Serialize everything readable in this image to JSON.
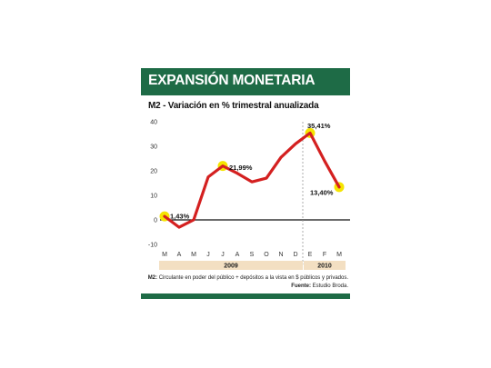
{
  "header": {
    "title": "EXPANSIÓN MONETARIA"
  },
  "chart_data": {
    "type": "line",
    "title": "M2 - Variación en % trimestral anualizada",
    "categories": [
      "M",
      "A",
      "M",
      "J",
      "J",
      "A",
      "S",
      "O",
      "N",
      "D",
      "E",
      "F",
      "M"
    ],
    "values": [
      1.43,
      -3,
      0,
      17.5,
      21.99,
      19,
      15.5,
      17,
      25.5,
      31,
      35.41,
      24,
      13.4
    ],
    "ylim": [
      -10,
      40
    ],
    "yticks": [
      "-10",
      "0",
      "10",
      "20",
      "30",
      "40"
    ],
    "year_groups": [
      {
        "label": "2009",
        "from": 0,
        "to": 9
      },
      {
        "label": "2010",
        "from": 10,
        "to": 12
      }
    ],
    "annotations": [
      {
        "index": 0,
        "label": "1,43%"
      },
      {
        "index": 4,
        "label": "21,99%"
      },
      {
        "index": 10,
        "label": "35,41%"
      },
      {
        "index": 12,
        "label": "13,40%"
      }
    ],
    "line_color": "#d42020",
    "marker_color": "#f5e400"
  },
  "footer": {
    "note_term": "M2:",
    "note_text": " Circulante en poder del público + depósitos a la vista en $ públicos y privados.",
    "source_term": "Fuente:",
    "source_text": " Estudio Broda."
  }
}
